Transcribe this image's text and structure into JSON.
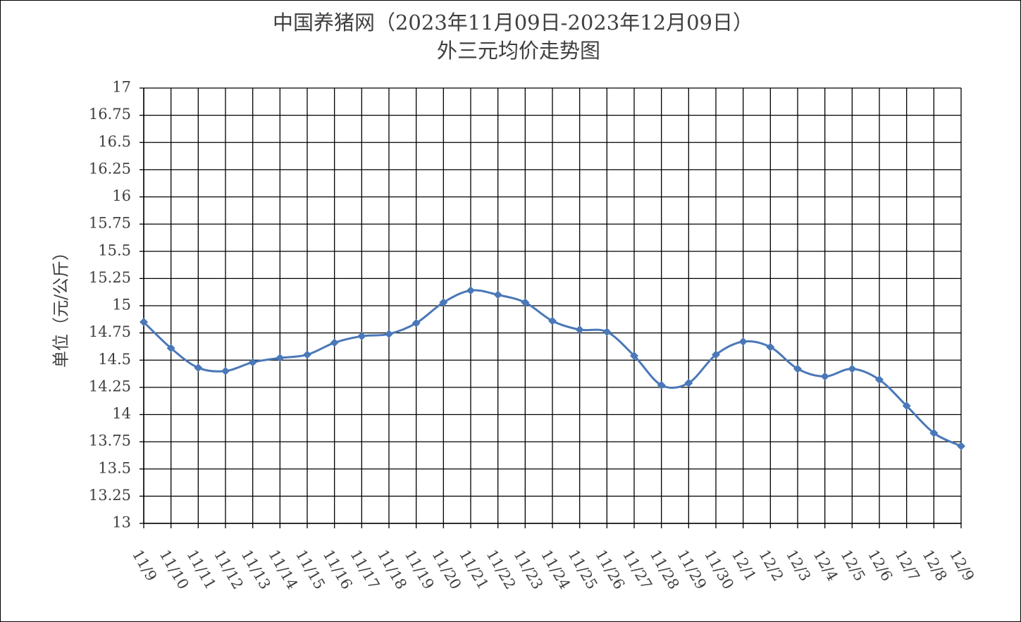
{
  "chart_data": {
    "type": "line",
    "title": "中国养猪网（2023年11月09日-2023年12月09日）",
    "subtitle": "外三元均价走势图",
    "y_label": "单位（元/公斤）",
    "categories": [
      "11/9",
      "11/10",
      "11/11",
      "11/12",
      "11/13",
      "11/14",
      "11/15",
      "11/16",
      "11/17",
      "11/18",
      "11/19",
      "11/20",
      "11/21",
      "11/22",
      "11/23",
      "11/24",
      "11/25",
      "11/26",
      "11/27",
      "11/28",
      "11/29",
      "11/30",
      "12/1",
      "12/2",
      "12/3",
      "12/4",
      "12/5",
      "12/6",
      "12/7",
      "12/8",
      "12/9"
    ],
    "values": [
      14.85,
      14.61,
      14.43,
      14.4,
      14.48,
      14.52,
      14.55,
      14.66,
      14.72,
      14.74,
      14.84,
      15.03,
      15.14,
      15.1,
      15.03,
      14.86,
      14.78,
      14.76,
      14.54,
      14.27,
      14.29,
      14.55,
      14.67,
      14.62,
      14.42,
      14.35,
      14.42,
      14.32,
      14.08,
      13.83,
      13.71
    ],
    "color": "#4a78b8",
    "ylim": [
      13,
      17
    ],
    "yticks": [
      13,
      13.25,
      13.5,
      13.75,
      14,
      14.25,
      14.5,
      14.75,
      15,
      15.25,
      15.5,
      15.75,
      16,
      16.25,
      16.5,
      16.75,
      17
    ],
    "grid": true
  }
}
